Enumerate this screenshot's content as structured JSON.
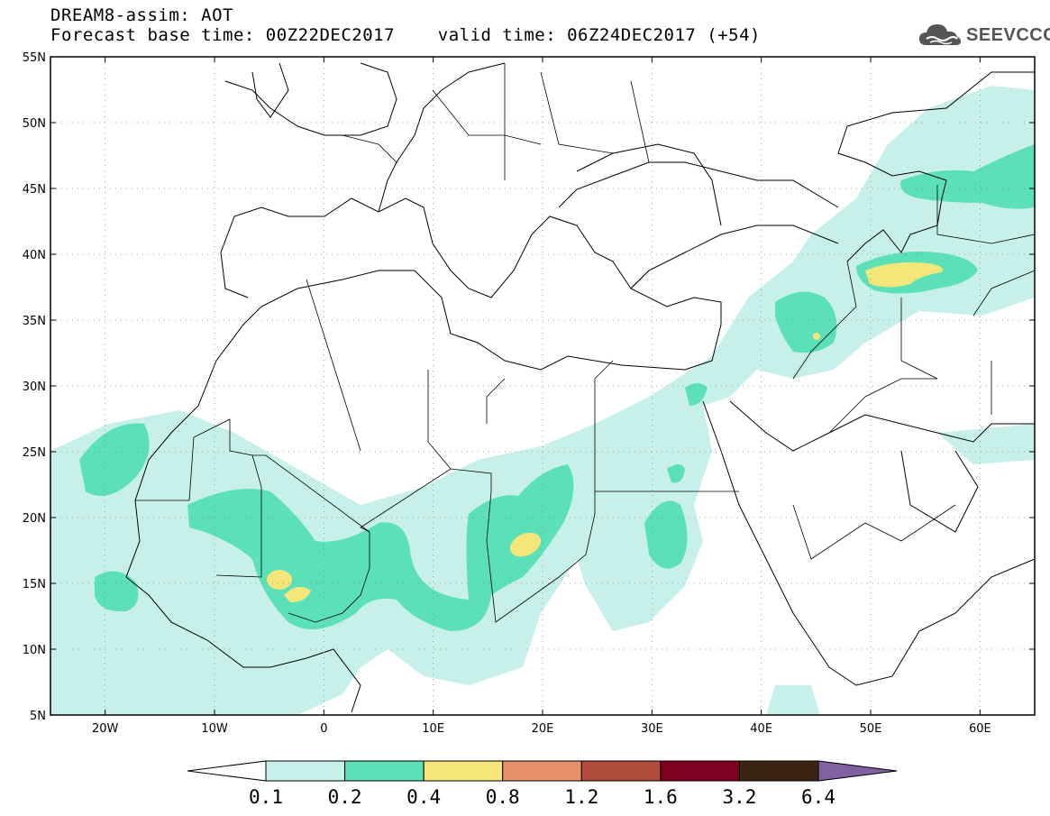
{
  "title": {
    "line1": "DREAM8-assim: AOT",
    "line2": "Forecast base time: 00Z22DEC2017    valid time: 06Z24DEC2017 (+54)"
  },
  "logo": {
    "text": "SEEVCCC",
    "icon": "cloud-icon"
  },
  "map": {
    "lon_range": [
      -25,
      65
    ],
    "lat_range": [
      5,
      55
    ],
    "lat_ticks": [
      "5N",
      "10N",
      "15N",
      "20N",
      "25N",
      "30N",
      "35N",
      "40N",
      "45N",
      "50N",
      "55N"
    ],
    "lon_ticks": [
      "20W",
      "10W",
      "0",
      "10E",
      "20E",
      "30E",
      "40E",
      "50E",
      "60E"
    ],
    "gridlines": true
  },
  "colorbar": {
    "labels": [
      "0.1",
      "0.2",
      "0.4",
      "0.8",
      "1.2",
      "1.6",
      "3.2",
      "6.4"
    ],
    "colors": [
      "#c8f0ea",
      "#5ce0b8",
      "#f5e67a",
      "#e8906c",
      "#b04c3c",
      "#800020",
      "#3c2414",
      "#8060a0"
    ]
  }
}
